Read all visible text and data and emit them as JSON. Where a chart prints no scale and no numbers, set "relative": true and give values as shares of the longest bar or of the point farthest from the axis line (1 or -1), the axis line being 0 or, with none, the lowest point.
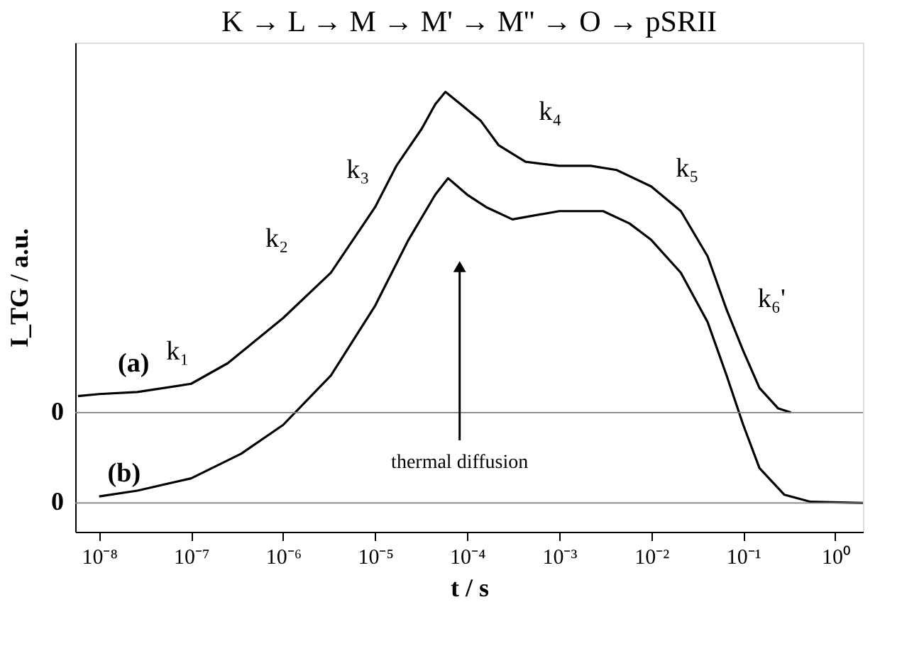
{
  "chart_data": {
    "type": "line",
    "title": "K → L   →   M   →        M'   →      M''  → O  → pSRII",
    "xlabel": "t / s",
    "ylabel": "I_TG / a.u.",
    "relative": true,
    "log": "x",
    "grid": false,
    "marker": "none",
    "line_style": "solid",
    "xlim": [
      5.5e-09,
      2
    ],
    "xticks": [
      {
        "value": 1e-08,
        "label": "10⁻⁸"
      },
      {
        "value": 1e-07,
        "label": "10⁻⁷"
      },
      {
        "value": 1e-06,
        "label": "10⁻⁶"
      },
      {
        "value": 1e-05,
        "label": "10⁻⁵"
      },
      {
        "value": 0.0001,
        "label": "10⁻⁴"
      },
      {
        "value": 0.001,
        "label": "10⁻³"
      },
      {
        "value": 0.01,
        "label": "10⁻²"
      },
      {
        "value": 0.1,
        "label": "10⁻¹"
      },
      {
        "value": 1,
        "label": "10⁰"
      }
    ],
    "series": [
      {
        "color": "#000000",
        "x": [
          5.9e-09,
          1e-08,
          2.6e-08,
          1e-07,
          2.5e-07,
          1e-06,
          3.3e-06,
          1e-05,
          1.7e-05,
          3.2e-05,
          4.5e-05,
          5.8e-05,
          8.5e-05,
          0.00014,
          0.00022,
          0.00043,
          0.001,
          0.0022,
          0.0042,
          0.01,
          0.021,
          0.041,
          0.066,
          0.1,
          0.15,
          0.24,
          0.33
        ],
        "values": [
          0.26,
          0.265,
          0.27,
          0.29,
          0.34,
          0.45,
          0.56,
          0.72,
          0.82,
          0.91,
          0.97,
          1.0,
          0.97,
          0.93,
          0.87,
          0.83,
          0.82,
          0.82,
          0.81,
          0.77,
          0.71,
          0.6,
          0.47,
          0.37,
          0.28,
          0.23,
          0.22
        ]
      },
      {
        "color": "#000000",
        "x": [
          1e-08,
          2.6e-08,
          1e-07,
          3.5e-07,
          1e-06,
          3.3e-06,
          1e-05,
          2.3e-05,
          4.5e-05,
          6.2e-05,
          0.0001,
          0.00016,
          0.00031,
          0.001,
          0.003,
          0.0058,
          0.01,
          0.021,
          0.041,
          0.066,
          0.1,
          0.15,
          0.28,
          0.54,
          2
        ],
        "values": [
          0.016,
          0.03,
          0.06,
          0.12,
          0.19,
          0.31,
          0.48,
          0.64,
          0.75,
          0.79,
          0.75,
          0.72,
          0.69,
          0.71,
          0.71,
          0.68,
          0.64,
          0.56,
          0.44,
          0.31,
          0.19,
          0.085,
          0.02,
          0.003,
          0
        ]
      }
    ],
    "ref_lines": [
      {
        "axis": "y",
        "value": 0.22,
        "label": "0",
        "color": "#808080"
      },
      {
        "axis": "y",
        "value": 0,
        "label": "0",
        "color": "#808080"
      }
    ],
    "annotations": [
      "(a)",
      "(b)",
      "k₁",
      "k₂",
      "k₃",
      "k₄",
      "k₅",
      "k₆'",
      "thermal diffusion"
    ]
  }
}
